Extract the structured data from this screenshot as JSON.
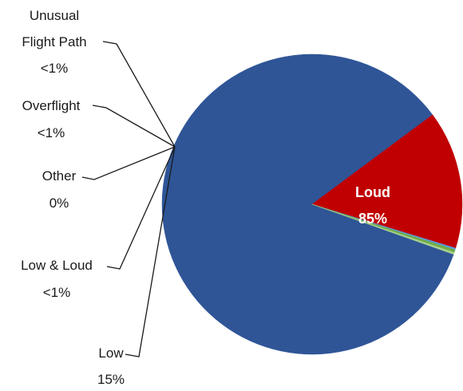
{
  "chart_data": {
    "type": "pie",
    "slices": [
      {
        "name": "Loud",
        "value": 85,
        "label": "85%",
        "color": "#2F5597"
      },
      {
        "name": "Low",
        "value": 15,
        "label": "15%",
        "color": "#C00000"
      },
      {
        "name": "Low & Loud",
        "value": 0.2,
        "label": "<1%",
        "color": "#5B9BD5"
      },
      {
        "name": "Other",
        "value": 0,
        "label": "0%",
        "color": "#7F7F7F"
      },
      {
        "name": "Overflight",
        "value": 0.3,
        "label": "<1%",
        "color": "#70AD47"
      },
      {
        "name": "Unusual Flight Path",
        "label_lines": [
          "Unusual",
          "Flight Path"
        ],
        "value": 0.2,
        "label": "<1%",
        "color": "#A9D18E"
      }
    ]
  }
}
